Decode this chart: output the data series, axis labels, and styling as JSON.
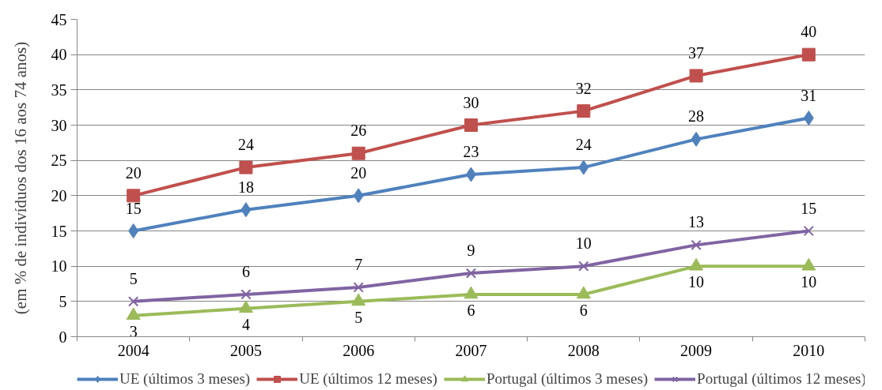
{
  "chart_data": {
    "type": "line",
    "ylabel": "(em % de indivíduos dos 16 aos 74 anos)",
    "categories": [
      "2004",
      "2005",
      "2006",
      "2007",
      "2008",
      "2009",
      "2010"
    ],
    "ylim": [
      0,
      45
    ],
    "yticks": [
      0,
      5,
      10,
      15,
      20,
      25,
      30,
      35,
      40,
      45
    ],
    "grid": "y",
    "legend": "bottom",
    "data_labels": true,
    "line_style": "solid",
    "series": [
      {
        "name": "UE (últimos 3 meses)",
        "color": "#4f81bd",
        "marker": "diamond",
        "values": [
          15,
          18,
          20,
          23,
          24,
          28,
          31
        ]
      },
      {
        "name": "UE (últimos 12 meses)",
        "color": "#c0504d",
        "marker": "square",
        "values": [
          20,
          24,
          26,
          30,
          32,
          37,
          40
        ]
      },
      {
        "name": "Portugal (últimos 3 meses)",
        "color": "#9bbb59",
        "marker": "triangle",
        "values": [
          3,
          4,
          5,
          6,
          6,
          10,
          10
        ]
      },
      {
        "name": "Portugal (últimos 12 meses)",
        "color": "#8064a2",
        "marker": "cross",
        "values": [
          5,
          6,
          7,
          9,
          10,
          13,
          15
        ]
      }
    ]
  }
}
